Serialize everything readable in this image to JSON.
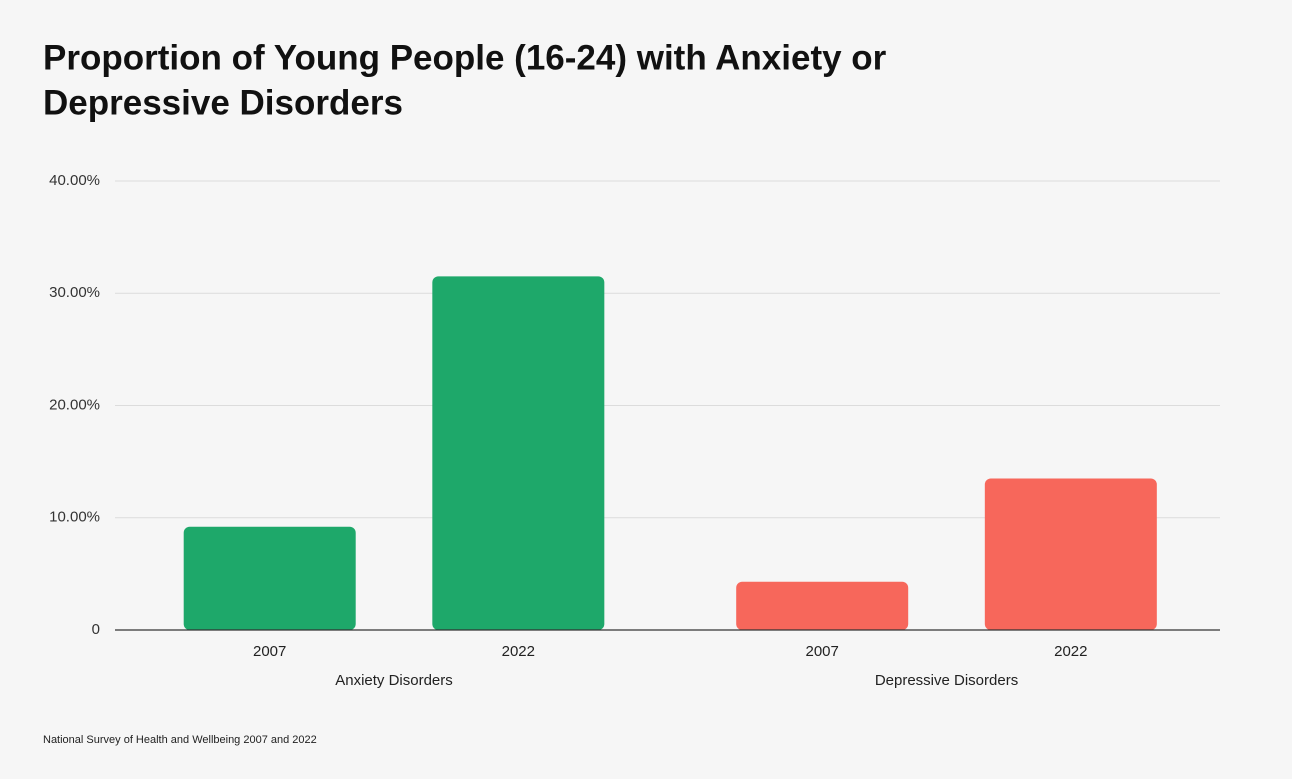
{
  "chart_data": {
    "type": "grouped-bar",
    "title": [
      "Proportion of Young People (16-24) with Anxiety or",
      "Depressive Disorders"
    ],
    "groups": [
      {
        "name": "Anxiety Disorders",
        "color": "#1ea86a",
        "categories": [
          "2007",
          "2022"
        ],
        "values": [
          9.2,
          31.5
        ]
      },
      {
        "name": "Depressive Disorders",
        "color": "#f7675b",
        "categories": [
          "2007",
          "2022"
        ],
        "values": [
          4.3,
          13.5
        ]
      }
    ],
    "ylim": [
      0,
      40
    ],
    "yticks": [
      0,
      {
        "value": 10,
        "label": "10.00%"
      },
      {
        "value": 20,
        "label": "20.00%"
      },
      {
        "value": 30,
        "label": "30.00%"
      },
      {
        "value": 40,
        "label": "40.00%"
      }
    ],
    "grid": true,
    "source": "National Survey of Health and Wellbeing 2007 and 2022"
  }
}
